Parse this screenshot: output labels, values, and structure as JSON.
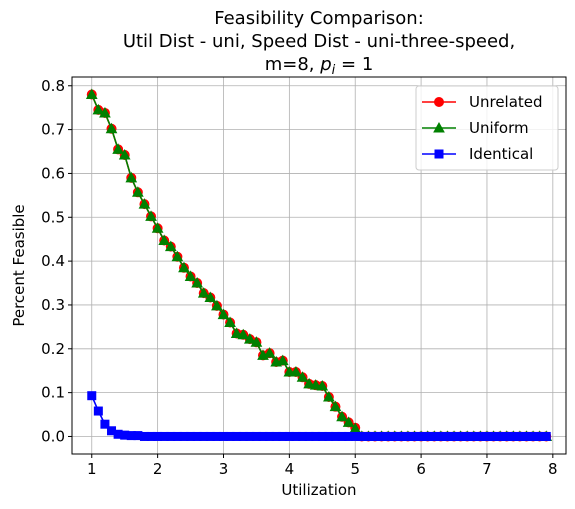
{
  "chart_data": {
    "type": "line",
    "title_lines": [
      "Feasibility Comparison:",
      "Util Dist - uni, Speed Dist - uni-three-speed,"
    ],
    "title_line3_prefix": "m=8, ",
    "title_line3_math_var": "p",
    "title_line3_math_sub": "i",
    "title_line3_suffix": " = 1",
    "xlabel": "Utilization",
    "ylabel": "Percent Feasible",
    "xlim": [
      0.7,
      8.2
    ],
    "ylim": [
      -0.04,
      0.82
    ],
    "xticks": [
      1,
      2,
      3,
      4,
      5,
      6,
      7,
      8
    ],
    "yticks": [
      0.0,
      0.1,
      0.2,
      0.3,
      0.4,
      0.5,
      0.6,
      0.7,
      0.8
    ],
    "ytick_labels": [
      "0.0",
      "0.1",
      "0.2",
      "0.3",
      "0.4",
      "0.5",
      "0.6",
      "0.7",
      "0.8"
    ],
    "grid": true,
    "legend_position": "top-right",
    "x": [
      1.0,
      1.1,
      1.2,
      1.3,
      1.4,
      1.5,
      1.6,
      1.7,
      1.8,
      1.9,
      2.0,
      2.1,
      2.2,
      2.3,
      2.4,
      2.5,
      2.6,
      2.7,
      2.8,
      2.9,
      3.0,
      3.1,
      3.2,
      3.3,
      3.4,
      3.5,
      3.6,
      3.7,
      3.8,
      3.9,
      4.0,
      4.1,
      4.2,
      4.3,
      4.4,
      4.5,
      4.6,
      4.7,
      4.8,
      4.9,
      5.0,
      5.1,
      5.2,
      5.3,
      5.4,
      5.5,
      5.6,
      5.7,
      5.8,
      5.9,
      6.0,
      6.1,
      6.2,
      6.3,
      6.4,
      6.5,
      6.6,
      6.7,
      6.8,
      6.9,
      7.0,
      7.1,
      7.2,
      7.3,
      7.4,
      7.5,
      7.6,
      7.7,
      7.8,
      7.9
    ],
    "series": [
      {
        "name": "Unrelated",
        "color": "#ff0000",
        "marker": "circle",
        "values": [
          0.78,
          0.745,
          0.738,
          0.702,
          0.655,
          0.642,
          0.59,
          0.557,
          0.53,
          0.502,
          0.475,
          0.447,
          0.433,
          0.41,
          0.385,
          0.365,
          0.35,
          0.327,
          0.317,
          0.298,
          0.278,
          0.26,
          0.235,
          0.232,
          0.222,
          0.215,
          0.185,
          0.19,
          0.17,
          0.173,
          0.147,
          0.147,
          0.135,
          0.12,
          0.117,
          0.115,
          0.09,
          0.068,
          0.045,
          0.032,
          0.02,
          0.0,
          0.0,
          0.0,
          0.0,
          0.0,
          0.0,
          0.0,
          0.0,
          0.0,
          0.0,
          0.0,
          0.0,
          0.0,
          0.0,
          0.0,
          0.0,
          0.0,
          0.0,
          0.0,
          0.0,
          0.0,
          0.0,
          0.0,
          0.0,
          0.0,
          0.0,
          0.0,
          0.0,
          0.0
        ]
      },
      {
        "name": "Uniform",
        "color": "#008000",
        "marker": "triangle",
        "values": [
          0.78,
          0.745,
          0.738,
          0.702,
          0.655,
          0.642,
          0.59,
          0.557,
          0.53,
          0.502,
          0.475,
          0.447,
          0.433,
          0.41,
          0.385,
          0.365,
          0.35,
          0.327,
          0.317,
          0.298,
          0.278,
          0.26,
          0.235,
          0.232,
          0.222,
          0.215,
          0.185,
          0.19,
          0.17,
          0.173,
          0.147,
          0.147,
          0.135,
          0.12,
          0.117,
          0.115,
          0.09,
          0.068,
          0.045,
          0.032,
          0.018,
          0.0,
          0.0,
          0.0,
          0.0,
          0.0,
          0.0,
          0.0,
          0.0,
          0.0,
          0.0,
          0.0,
          0.0,
          0.0,
          0.0,
          0.0,
          0.0,
          0.0,
          0.0,
          0.0,
          0.0,
          0.0,
          0.0,
          0.0,
          0.0,
          0.0,
          0.0,
          0.0,
          0.0,
          0.0
        ]
      },
      {
        "name": "Identical",
        "color": "#0000ff",
        "marker": "square",
        "values": [
          0.093,
          0.058,
          0.028,
          0.013,
          0.005,
          0.003,
          0.002,
          0.002,
          0.0,
          0.0,
          0.0,
          0.0,
          0.0,
          0.0,
          0.0,
          0.0,
          0.0,
          0.0,
          0.0,
          0.0,
          0.0,
          0.0,
          0.0,
          0.0,
          0.0,
          0.0,
          0.0,
          0.0,
          0.0,
          0.0,
          0.0,
          0.0,
          0.0,
          0.0,
          0.0,
          0.0,
          0.0,
          0.0,
          0.0,
          0.0,
          0.0,
          0.0,
          0.0,
          0.0,
          0.0,
          0.0,
          0.0,
          0.0,
          0.0,
          0.0,
          0.0,
          0.0,
          0.0,
          0.0,
          0.0,
          0.0,
          0.0,
          0.0,
          0.0,
          0.0,
          0.0,
          0.0,
          0.0,
          0.0,
          0.0,
          0.0,
          0.0,
          0.0,
          0.0,
          0.0
        ]
      }
    ]
  }
}
